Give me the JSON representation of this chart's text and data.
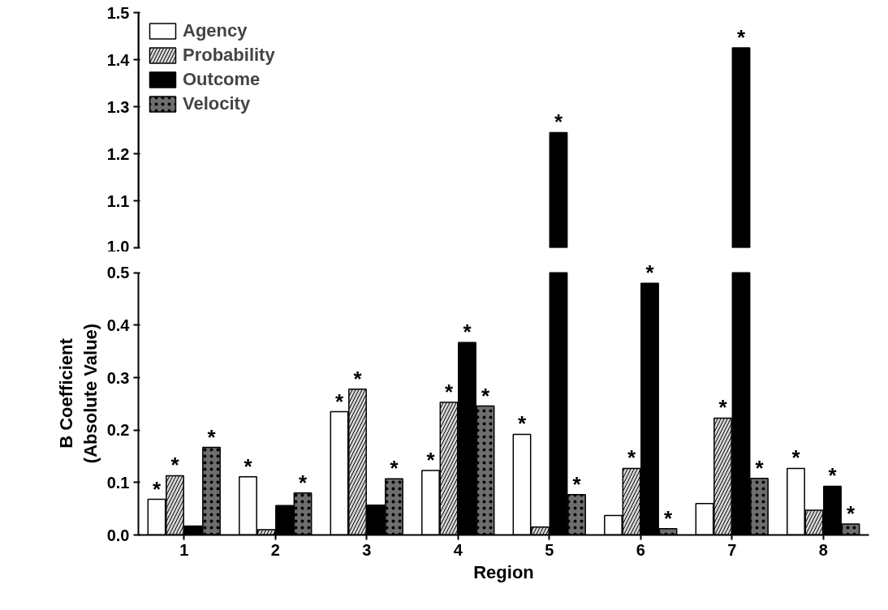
{
  "chart_data": [
    {
      "type": "bar",
      "categories": [
        "1",
        "2",
        "3",
        "4",
        "5",
        "6",
        "7",
        "8"
      ],
      "ylim": [
        1.0,
        1.5
      ],
      "yticks": [
        {
          "value": 1.0,
          "label": "1.0"
        },
        1.1,
        1.2,
        1.3,
        1.4,
        1.5
      ],
      "tick_labels": "y",
      "legend": "top left",
      "grid": false,
      "series": [
        {
          "name": "Agency",
          "color": "#ffffff",
          "values": [
            null,
            null,
            null,
            null,
            null,
            null,
            null,
            null
          ]
        },
        {
          "name": "Probability",
          "color": "#d4d4d4",
          "values": [
            null,
            null,
            null,
            null,
            null,
            null,
            null,
            null
          ]
        },
        {
          "name": "Outcome",
          "color": "#000000",
          "values": [
            null,
            null,
            null,
            null,
            1.245,
            null,
            1.425,
            null
          ],
          "value_labels": [
            null,
            null,
            null,
            null,
            "*",
            null,
            "*",
            null
          ]
        },
        {
          "name": "Velocity",
          "color": "#6e6e6e",
          "values": [
            null,
            null,
            null,
            null,
            null,
            null,
            null,
            null
          ]
        }
      ]
    },
    {
      "type": "bar",
      "categories": [
        "1",
        "2",
        "3",
        "4",
        "5",
        "6",
        "7",
        "8"
      ],
      "ylim": [
        0.0,
        0.5
      ],
      "yticks": [
        {
          "value": 0.0,
          "label": "0.0"
        },
        0.1,
        0.2,
        0.3,
        0.4,
        0.5
      ],
      "xlabel": "Region",
      "ylabel": "B Coefficient\n(Absolute Value)",
      "grid": false,
      "series": [
        {
          "color": "#ffffff",
          "values": [
            0.068,
            0.111,
            0.235,
            0.123,
            0.192,
            0.037,
            0.06,
            0.127
          ],
          "value_labels": [
            "*",
            "*",
            "*",
            "*",
            "*",
            null,
            null,
            "*"
          ]
        },
        {
          "color": "#d4d4d4",
          "values": [
            0.113,
            0.01,
            0.278,
            0.253,
            0.015,
            0.127,
            0.223,
            0.047
          ],
          "value_labels": [
            "*",
            null,
            "*",
            "*",
            null,
            "*",
            "*",
            null
          ]
        },
        {
          "color": "#000000",
          "values": [
            0.017,
            0.056,
            0.057,
            0.367,
            0.5,
            0.48,
            0.5,
            0.093
          ],
          "value_labels": [
            null,
            null,
            null,
            "*",
            null,
            "*",
            null,
            "*"
          ]
        },
        {
          "color": "#6e6e6e",
          "values": [
            0.167,
            0.08,
            0.107,
            0.246,
            0.077,
            0.012,
            0.108,
            0.021
          ],
          "value_labels": [
            "*",
            "*",
            "*",
            "*",
            "*",
            "*",
            "*",
            "*"
          ]
        }
      ]
    }
  ]
}
